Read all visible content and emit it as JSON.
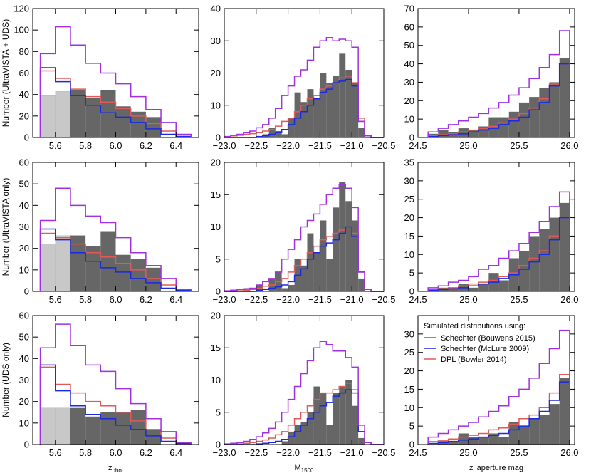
{
  "chart_data": {
    "type": "histogram-grid",
    "colors": {
      "obs": "#666666",
      "light": "#c8c8c8",
      "bouwens": "#a030e0",
      "mclure": "#1a2ae0",
      "bowler": "#e05a5a"
    },
    "legend": {
      "title": "Simulated distributions using:",
      "entries": [
        {
          "key": "bouwens",
          "label": "Schechter (Bouwens 2015)"
        },
        {
          "key": "mclure",
          "label": "Schechter (McLure 2009)"
        },
        {
          "key": "bowler",
          "label": "DPL (Bowler 2014)"
        }
      ]
    },
    "columns": [
      {
        "xlabel_main": "z",
        "xlabel_sub": "phot",
        "xlim": [
          5.45,
          6.55
        ],
        "xticks": [
          5.6,
          5.8,
          6.0,
          6.2,
          6.4
        ],
        "tick_format": "1",
        "bin_edges": [
          5.5,
          5.6,
          5.7,
          5.8,
          5.9,
          6.0,
          6.1,
          6.2,
          6.3,
          6.4,
          6.5
        ]
      },
      {
        "xlabel_main": "M",
        "xlabel_sub": "1500",
        "xlim": [
          -23.0,
          -20.5
        ],
        "xticks": [
          -23.0,
          -22.5,
          -22.0,
          -21.5,
          -21.0,
          -20.5
        ],
        "tick_format": "1",
        "bin_edges": [
          -23.0,
          -22.9,
          -22.8,
          -22.7,
          -22.6,
          -22.5,
          -22.4,
          -22.3,
          -22.2,
          -22.1,
          -22.0,
          -21.9,
          -21.8,
          -21.7,
          -21.6,
          -21.5,
          -21.4,
          -21.3,
          -21.2,
          -21.1,
          -21.0,
          -20.9,
          -20.8,
          -20.7,
          -20.6,
          -20.5
        ]
      },
      {
        "xlabel_main": "z' aperture mag",
        "xlabel_sub": "",
        "xlim": [
          24.5,
          26.05
        ],
        "xticks": [
          24.5,
          25.0,
          25.5,
          26.0
        ],
        "tick_format": "1",
        "bin_edges": [
          24.6,
          24.7,
          24.8,
          24.9,
          25.0,
          25.1,
          25.2,
          25.3,
          25.4,
          25.5,
          25.6,
          25.7,
          25.8,
          25.9,
          26.0
        ]
      }
    ],
    "rows": [
      {
        "ylabel": "Number (UltraVISTA + UDS)",
        "panels": [
          {
            "ylim": [
              0,
              120
            ],
            "yticks": [
              0,
              20,
              40,
              60,
              80,
              100,
              120
            ],
            "light": [
              39,
              43
            ],
            "obs": [
              39,
              43,
              44,
              37,
              44,
              29,
              24,
              19,
              0,
              0
            ],
            "bouwens": [
              78,
              103,
              86,
              69,
              60,
              50,
              38,
              26,
              14,
              3
            ],
            "mclure": [
              65,
              52,
              39,
              30,
              23,
              19,
              14,
              8,
              3,
              1
            ],
            "bowler": [
              62,
              55,
              45,
              38,
              33,
              27,
              20,
              13,
              6,
              1
            ]
          },
          {
            "ylim": [
              0,
              40
            ],
            "yticks": [
              0,
              10,
              20,
              30,
              40
            ],
            "obs": [
              0,
              0,
              0,
              0,
              0,
              0,
              1,
              3,
              2,
              1,
              6,
              14,
              11,
              15,
              12,
              20,
              17,
              19,
              26,
              21,
              17,
              3,
              0,
              0,
              0
            ],
            "bouwens": [
              0.3,
              0.7,
              1,
              1.5,
              2,
              3,
              4,
              6,
              9,
              13,
              16,
              19,
              21,
              24,
              28,
              30,
              31,
              30,
              30.5,
              30,
              28,
              5,
              0.5,
              0,
              0
            ],
            "mclure": [
              0,
              0,
              0,
              0,
              0,
              0.3,
              0.5,
              1,
              1.5,
              2.5,
              4,
              6,
              8,
              10,
              12,
              14,
              15,
              17,
              17.5,
              18,
              16,
              5,
              0.5,
              0,
              0
            ],
            "bowler": [
              0.2,
              0.5,
              0.7,
              1,
              1.2,
              1.5,
              2,
              2.5,
              3.5,
              5,
              6,
              8,
              10,
              12,
              13,
              15,
              16,
              17,
              18.5,
              19,
              17,
              6,
              0.5,
              0,
              0
            ]
          },
          {
            "ylim": [
              0,
              70
            ],
            "yticks": [
              0,
              10,
              20,
              30,
              40,
              50,
              60,
              70
            ],
            "obs": [
              2,
              4,
              3,
              5,
              4,
              6,
              11,
              11,
              14,
              19,
              22,
              27,
              30,
              43
            ],
            "bouwens": [
              3,
              5,
              7,
              9,
              11,
              13,
              16,
              19,
              23,
              27,
              32,
              38,
              45,
              58
            ],
            "mclure": [
              0.5,
              1,
              1.5,
              2,
              3,
              4,
              5,
              7,
              9,
              11,
              15,
              19,
              28,
              40
            ],
            "bowler": [
              1,
              1.5,
              2,
              3,
              4,
              5,
              6,
              8,
              10,
              13,
              16,
              21,
              29,
              40
            ]
          }
        ]
      },
      {
        "ylabel": "Number (UltraVISTA only)",
        "panels": [
          {
            "ylim": [
              0,
              60
            ],
            "yticks": [
              0,
              10,
              20,
              30,
              40,
              50,
              60
            ],
            "light": [
              22,
              26
            ],
            "obs": [
              22,
              26,
              26,
              21,
              28,
              17,
              15,
              11,
              0,
              0
            ],
            "bouwens": [
              33,
              48,
              40,
              35,
              32,
              25,
              18,
              12,
              6,
              1
            ],
            "mclure": [
              29,
              24,
              18,
              14,
              11,
              9,
              6,
              4,
              1.5,
              0.5
            ],
            "bowler": [
              27,
              25,
              22,
              18,
              16,
              13,
              10,
              6,
              3,
              0.5
            ]
          },
          {
            "ylim": [
              0,
              20
            ],
            "yticks": [
              0,
              5,
              10,
              15,
              20
            ],
            "obs": [
              0,
              0,
              0,
              0.5,
              0,
              1,
              0,
              2,
              3,
              0.5,
              1,
              5,
              4,
              9,
              6,
              11,
              5,
              13,
              17,
              14,
              11,
              2,
              0,
              0,
              0
            ],
            "bouwens": [
              0.1,
              0.2,
              0.3,
              0.4,
              0.5,
              1,
              1.5,
              2,
              3,
              5,
              6.5,
              8,
              10,
              11,
              12,
              13.5,
              15,
              16,
              16.5,
              16,
              13,
              3,
              0.3,
              0,
              0
            ],
            "mclure": [
              0,
              0,
              0,
              0,
              0,
              0.2,
              0.3,
              0.5,
              0.7,
              1,
              1.5,
              2.5,
              3.5,
              5,
              6,
              7,
              7.5,
              8,
              9,
              10,
              8.5,
              3,
              0.3,
              0,
              0
            ],
            "bowler": [
              0,
              0,
              0.1,
              0.2,
              0.3,
              0.5,
              0.8,
              1,
              1.5,
              2,
              3,
              4,
              5,
              6,
              7,
              8,
              8.5,
              9,
              9.5,
              10,
              9,
              3,
              0.3,
              0,
              0
            ]
          },
          {
            "ylim": [
              0,
              35
            ],
            "yticks": [
              0,
              5,
              10,
              15,
              20,
              25,
              30,
              35
            ],
            "obs": [
              0,
              1,
              1,
              2,
              1,
              2,
              5,
              3,
              9,
              11,
              15,
              17,
              20,
              24
            ],
            "bouwens": [
              1,
              1.5,
              2.5,
              3,
              4,
              6,
              7,
              9,
              11,
              13,
              16,
              19,
              23,
              27
            ],
            "mclure": [
              0.3,
              0.5,
              0.7,
              1,
              1.5,
              2,
              2.5,
              3.5,
              4.5,
              6,
              8,
              10,
              14,
              20
            ],
            "bowler": [
              0.5,
              0.7,
              1,
              1.5,
              2,
              2.5,
              3,
              4,
              5,
              7,
              9,
              11,
              15,
              20
            ]
          }
        ]
      },
      {
        "ylabel": "Number (UDS only)",
        "panels": [
          {
            "ylim": [
              0,
              60
            ],
            "yticks": [
              0,
              10,
              20,
              30,
              40,
              50,
              60
            ],
            "light": [
              17,
              17
            ],
            "obs": [
              17,
              17,
              17,
              13,
              15,
              15,
              16,
              7,
              0,
              0
            ],
            "bouwens": [
              45,
              56,
              46,
              37,
              34,
              26,
              19,
              12,
              6,
              1
            ],
            "mclure": [
              37,
              25,
              18,
              14,
              12,
              9,
              7,
              4,
              1.5,
              0.5
            ],
            "bowler": [
              36,
              28,
              24,
              20,
              18,
              15,
              11,
              7,
              3,
              0.5
            ]
          },
          {
            "ylim": [
              0,
              20
            ],
            "yticks": [
              0,
              5,
              10,
              15,
              20
            ],
            "obs": [
              0,
              0,
              0,
              0,
              0,
              0,
              0,
              0,
              0,
              0.5,
              2,
              3,
              3.5,
              5,
              9,
              8,
              3,
              8,
              9,
              10,
              6,
              1,
              0,
              0,
              0
            ],
            "bouwens": [
              0.1,
              0.2,
              0.3,
              0.5,
              0.8,
              1.2,
              1.8,
              2.5,
              3.5,
              5,
              7,
              9,
              11,
              13,
              15,
              16,
              15.5,
              14.5,
              14.5,
              13.5,
              12,
              3,
              0.3,
              0,
              0
            ],
            "mclure": [
              0,
              0,
              0,
              0,
              0,
              0.1,
              0.2,
              0.3,
              0.5,
              0.8,
              1.2,
              2,
              3,
              4,
              5,
              6,
              6.5,
              7.5,
              8,
              8.5,
              8,
              2,
              0.3,
              0,
              0
            ],
            "bowler": [
              0,
              0,
              0.1,
              0.2,
              0.3,
              0.5,
              0.7,
              1,
              1.5,
              2,
              3,
              4,
              5,
              6,
              7,
              8,
              8,
              8.5,
              9,
              9.5,
              8.5,
              2,
              0.3,
              0,
              0
            ]
          },
          {
            "ylim": [
              0,
              35
            ],
            "yticks": [
              0,
              5,
              10,
              15,
              20,
              25,
              30
            ],
            "obs": [
              0,
              1,
              1,
              3,
              2,
              2,
              3,
              2,
              6,
              5,
              7,
              8,
              11,
              18
            ],
            "bouwens": [
              2,
              3,
              4,
              5,
              6,
              7.5,
              9,
              10.5,
              13,
              15,
              18,
              22,
              26,
              31
            ],
            "mclure": [
              0.3,
              0.5,
              0.8,
              1.2,
              1.5,
              2,
              2.5,
              3,
              4,
              5,
              7,
              9,
              12,
              17
            ],
            "bowler": [
              0.8,
              1,
              1.5,
              2,
              2.5,
              3,
              4,
              4.5,
              5.5,
              7,
              8,
              10,
              14,
              19
            ]
          }
        ]
      }
    ]
  }
}
